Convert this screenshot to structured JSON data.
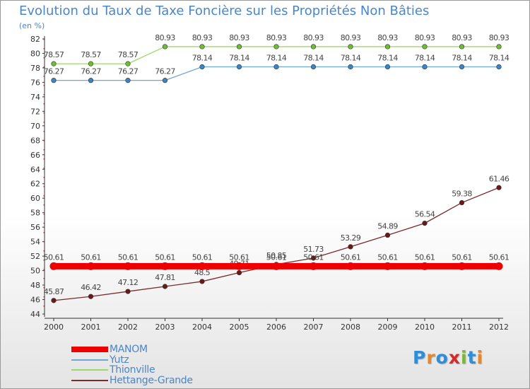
{
  "title": "Evolution du Taux de Taxe Foncière sur les Propriétés Non Bâties",
  "subtitle": "(en %)",
  "brand": {
    "text": "Proxiti",
    "colors": [
      "#2e8fd8",
      "#e8862a",
      "#2e8fd8",
      "#d62a2a",
      "#79b832",
      "#2e8fd8",
      "#e8862a"
    ]
  },
  "chart_data": {
    "type": "line",
    "title": "Evolution du Taux de Taxe Foncière sur les Propriétés Non Bâties",
    "ylabel": "(en %)",
    "xlabel": "",
    "ylim": [
      44,
      82
    ],
    "ytick_step": 2,
    "grid": false,
    "legend_position": "bottom-left",
    "categories": [
      "2000",
      "2001",
      "2002",
      "2003",
      "2004",
      "2005",
      "2006",
      "2007",
      "2008",
      "2009",
      "2010",
      "2011",
      "2012"
    ],
    "series": [
      {
        "name": "MANOM",
        "color": "#ee0000",
        "pointColor": "#ee0000",
        "thick": true,
        "values": [
          50.61,
          50.61,
          50.61,
          50.61,
          50.61,
          50.61,
          50.61,
          50.61,
          50.61,
          50.61,
          50.61,
          50.61,
          50.61
        ],
        "labels": [
          "50.61",
          "50.61",
          "50.61",
          "50.61",
          "50.61",
          "50.61",
          "50.61",
          "50.61",
          "50.61",
          "50.61",
          "50.61",
          "50.61",
          "50.61"
        ]
      },
      {
        "name": "Yutz",
        "color": "#6fa6d6",
        "pointColor": "#3a85c8",
        "thick": false,
        "values": [
          76.27,
          76.27,
          76.27,
          76.27,
          78.14,
          78.14,
          78.14,
          78.14,
          78.14,
          78.14,
          78.14,
          78.14,
          78.14
        ],
        "labels": [
          "76.27",
          "76.27",
          "76.27",
          "76.27",
          "78.14",
          "78.14",
          "78.14",
          "78.14",
          "78.14",
          "78.14",
          "78.14",
          "78.14",
          "78.14"
        ]
      },
      {
        "name": "Thionville",
        "color": "#9ed86a",
        "pointColor": "#6cc030",
        "thick": false,
        "values": [
          78.57,
          78.57,
          78.57,
          80.93,
          80.93,
          80.93,
          80.93,
          80.93,
          80.93,
          80.93,
          80.93,
          80.93,
          80.93
        ],
        "labels": [
          "78.57",
          "78.57",
          "78.57",
          "80.93",
          "80.93",
          "80.93",
          "80.93",
          "80.93",
          "80.93",
          "80.93",
          "80.93",
          "80.93",
          "80.93"
        ]
      },
      {
        "name": "Hettange-Grande",
        "color": "#7a2a2a",
        "pointColor": "#6a1818",
        "thick": false,
        "values": [
          45.87,
          46.42,
          47.12,
          47.81,
          48.5,
          49.71,
          50.85,
          51.73,
          53.29,
          54.89,
          56.54,
          59.38,
          61.46
        ],
        "labels": [
          "45.87",
          "46.42",
          "47.12",
          "47.81",
          "48.5",
          "49.71",
          "50.85",
          "51.73",
          "53.29",
          "54.89",
          "56.54",
          "59.38",
          "61.46"
        ]
      }
    ]
  }
}
